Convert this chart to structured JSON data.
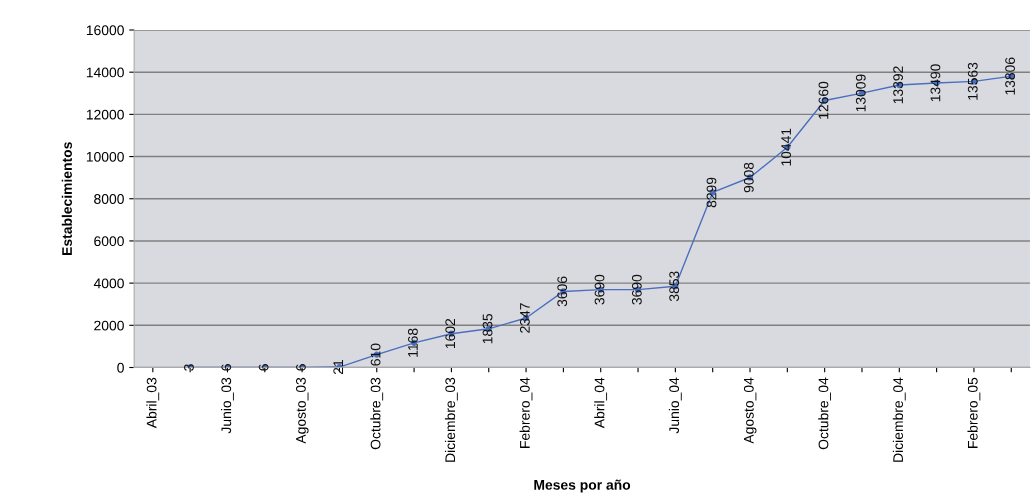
{
  "chart_data": {
    "type": "line",
    "xlabel": "Meses por año",
    "ylabel": "Establecimientos",
    "categories": [
      "Abril_03",
      null,
      "Junio_03",
      null,
      "Agosto_03",
      null,
      "Octubre_03",
      null,
      "Diciembre_03",
      null,
      "Febrero_04",
      null,
      "Abril_04",
      null,
      "Junio_04",
      null,
      "Agosto_04",
      null,
      "Octubre_04",
      null,
      "Diciembre_04",
      null,
      "Febrero_05",
      null
    ],
    "series": [
      {
        "color": "#4a6fbf",
        "values": [
          null,
          3,
          6,
          6,
          6,
          21,
          610,
          1168,
          1602,
          1835,
          2347,
          3606,
          3690,
          3690,
          3853,
          8299,
          9008,
          10441,
          12660,
          13009,
          13392,
          13490,
          13563,
          13806
        ]
      }
    ],
    "ylim": [
      0,
      16000
    ],
    "yticks": [
      0,
      2000,
      4000,
      6000,
      8000,
      10000,
      12000,
      14000,
      16000
    ],
    "grid": "y",
    "marker": "circle",
    "line_style": "solid",
    "data_labels": true,
    "legend": false
  }
}
